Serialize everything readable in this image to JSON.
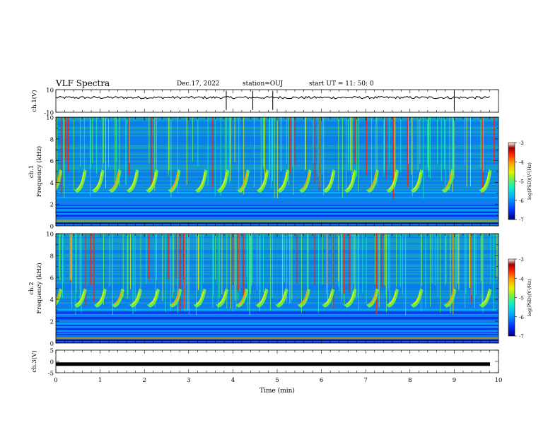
{
  "header": {
    "title": "VLF Spectra",
    "date": "Dec.17, 2022",
    "station": "station=OUJ",
    "start_ut": "start UT =  11: 50: 0"
  },
  "chart_data": [
    {
      "type": "line",
      "panel": "ch1-waveform",
      "ylabel": "ch.1(V)",
      "ylim": [
        -10,
        10
      ],
      "yticks": [
        "10",
        "-10"
      ],
      "xlim": [
        0,
        10
      ],
      "series": [
        {
          "values_description": "noisy trace near 3 V with brief spikes",
          "mean": 3.0
        }
      ],
      "spike_times_min": [
        3.85,
        4.45,
        4.9,
        9.0
      ]
    },
    {
      "type": "heatmap",
      "panel": "ch1-spectrogram",
      "ylabel": "ch.1\nFrequency (kHz)",
      "ylim": [
        0,
        10
      ],
      "yticks": [
        "0",
        "2",
        "4",
        "6",
        "8",
        "10"
      ],
      "xlim": [
        0,
        10
      ],
      "colorbar": {
        "label": "log(PSD)(V²/Hz)",
        "range": [
          -7,
          -3
        ],
        "ticks": [
          "-3",
          "-4",
          "-5",
          "-6",
          "-7"
        ]
      },
      "chorus_element_times_min": [
        0.05,
        0.6,
        1.0,
        1.38,
        1.78,
        2.22,
        2.72,
        3.33,
        3.82,
        4.28,
        4.72,
        5.18,
        5.68,
        6.22,
        6.7,
        7.2,
        7.65,
        8.2,
        8.9,
        9.75
      ],
      "chorus_band_khz": [
        3.3,
        5.2
      ]
    },
    {
      "type": "heatmap",
      "panel": "ch2-spectrogram",
      "ylabel": "ch.2\nFrequency (kHz)",
      "ylim": [
        0,
        10
      ],
      "yticks": [
        "0",
        "2",
        "4",
        "6",
        "8",
        "10"
      ],
      "xlim": [
        0,
        10
      ],
      "colorbar": {
        "label": "log(PSD)(V²/Hz)",
        "range": [
          -7,
          -3
        ],
        "ticks": [
          "-3",
          "-4",
          "-5",
          "-6",
          "-7"
        ]
      },
      "chorus_element_times_min": [
        0.05,
        0.6,
        1.05,
        1.45,
        1.85,
        2.25,
        2.75,
        3.3,
        3.8,
        4.25,
        4.7,
        5.15,
        5.65,
        6.2,
        6.7,
        7.2,
        7.65,
        8.2,
        8.95,
        9.75
      ],
      "chorus_band_khz": [
        3.5,
        5.0
      ]
    },
    {
      "type": "line",
      "panel": "ch3-waveform",
      "ylabel": "ch.3(V)",
      "ylim": [
        -5,
        5
      ],
      "yticks": [
        "5",
        "0",
        "-5"
      ],
      "xlim": [
        0,
        10
      ],
      "xlabel": "Time (min)",
      "xticks": [
        "0",
        "1",
        "2",
        "3",
        "4",
        "5",
        "6",
        "7",
        "8",
        "9",
        "10"
      ],
      "series": [
        {
          "values_description": "flat trace",
          "mean": -1.2
        }
      ]
    }
  ],
  "colors": {
    "spectrogram_background": "#1a3fd6",
    "colormap": [
      "#00007a",
      "#0030ff",
      "#00b4ff",
      "#10f0c0",
      "#6cf04a",
      "#e6f000",
      "#ff9c00",
      "#ff2000",
      "#9e0000",
      "#ffffff"
    ]
  }
}
